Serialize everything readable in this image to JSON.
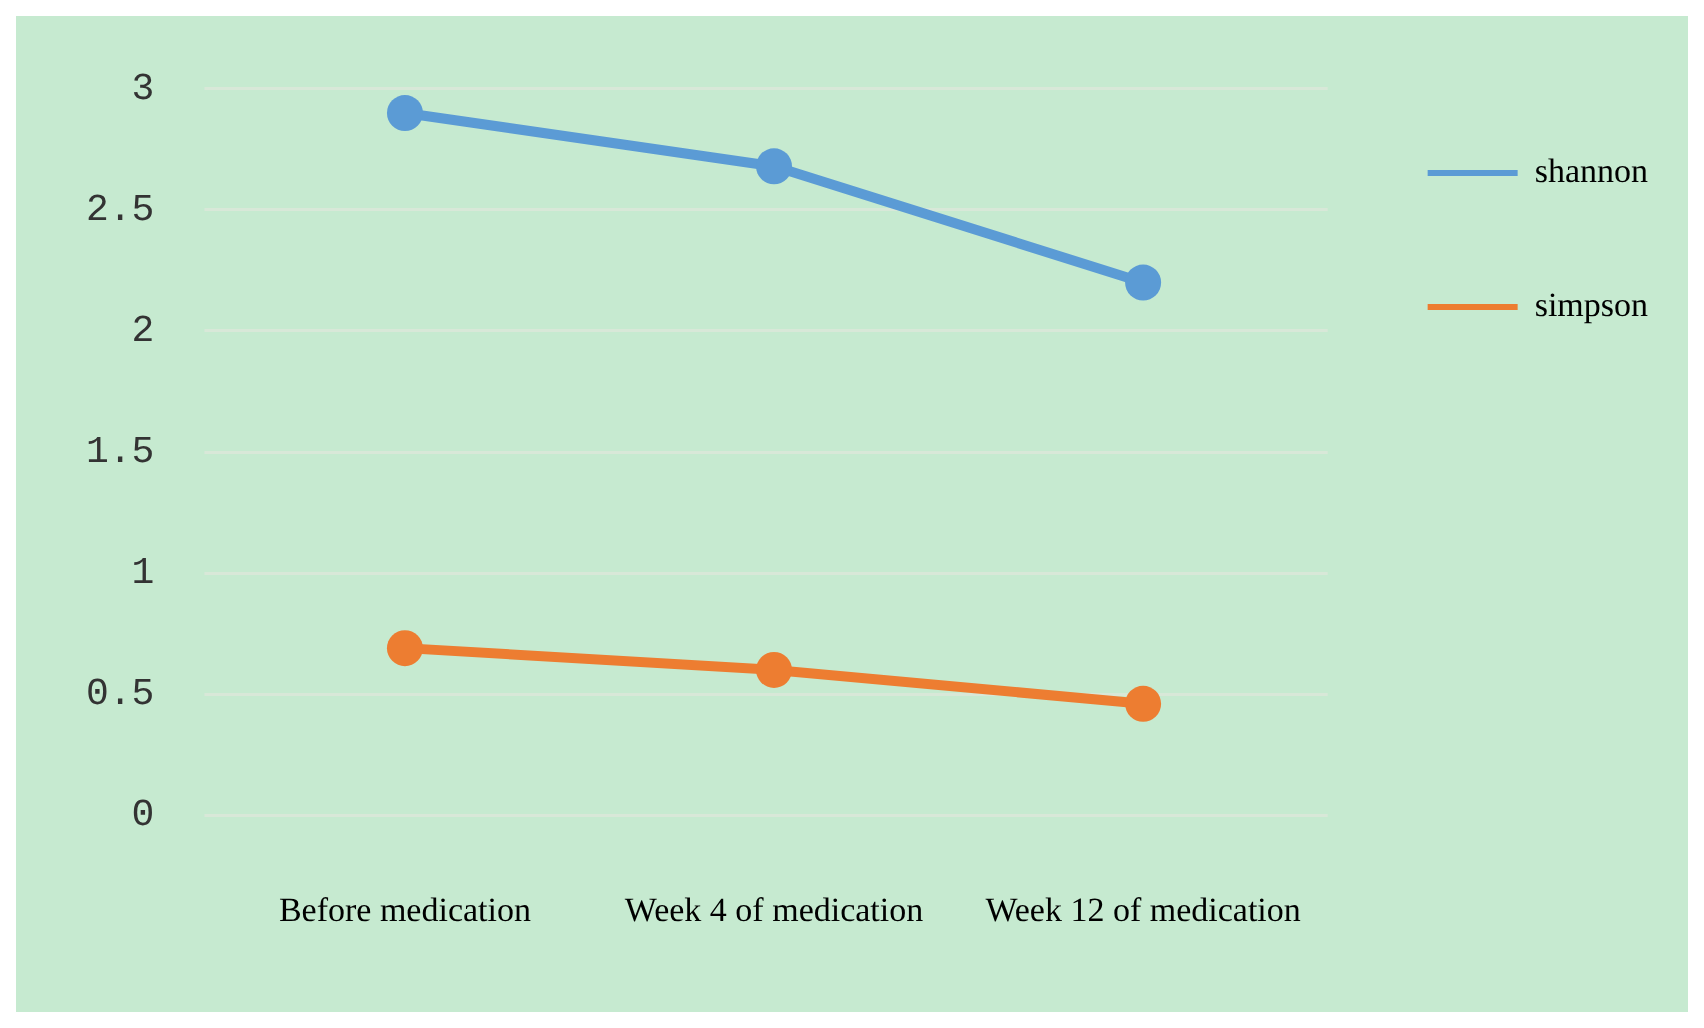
{
  "chart_data": {
    "type": "line",
    "categories": [
      "Before medication",
      "Week 4 of medication",
      "Week 12 of medication"
    ],
    "series": [
      {
        "name": "shannon",
        "color": "#5b9bd5",
        "values": [
          2.9,
          2.68,
          2.2
        ]
      },
      {
        "name": "simpson",
        "color": "#ed7d31",
        "values": [
          0.69,
          0.6,
          0.46
        ]
      }
    ],
    "ylim": [
      0,
      3
    ],
    "yticks": [
      0,
      0.5,
      1,
      1.5,
      2,
      2.5,
      3
    ],
    "grid": "y",
    "legend": "right",
    "marker": "circle",
    "line_style": "solid"
  }
}
